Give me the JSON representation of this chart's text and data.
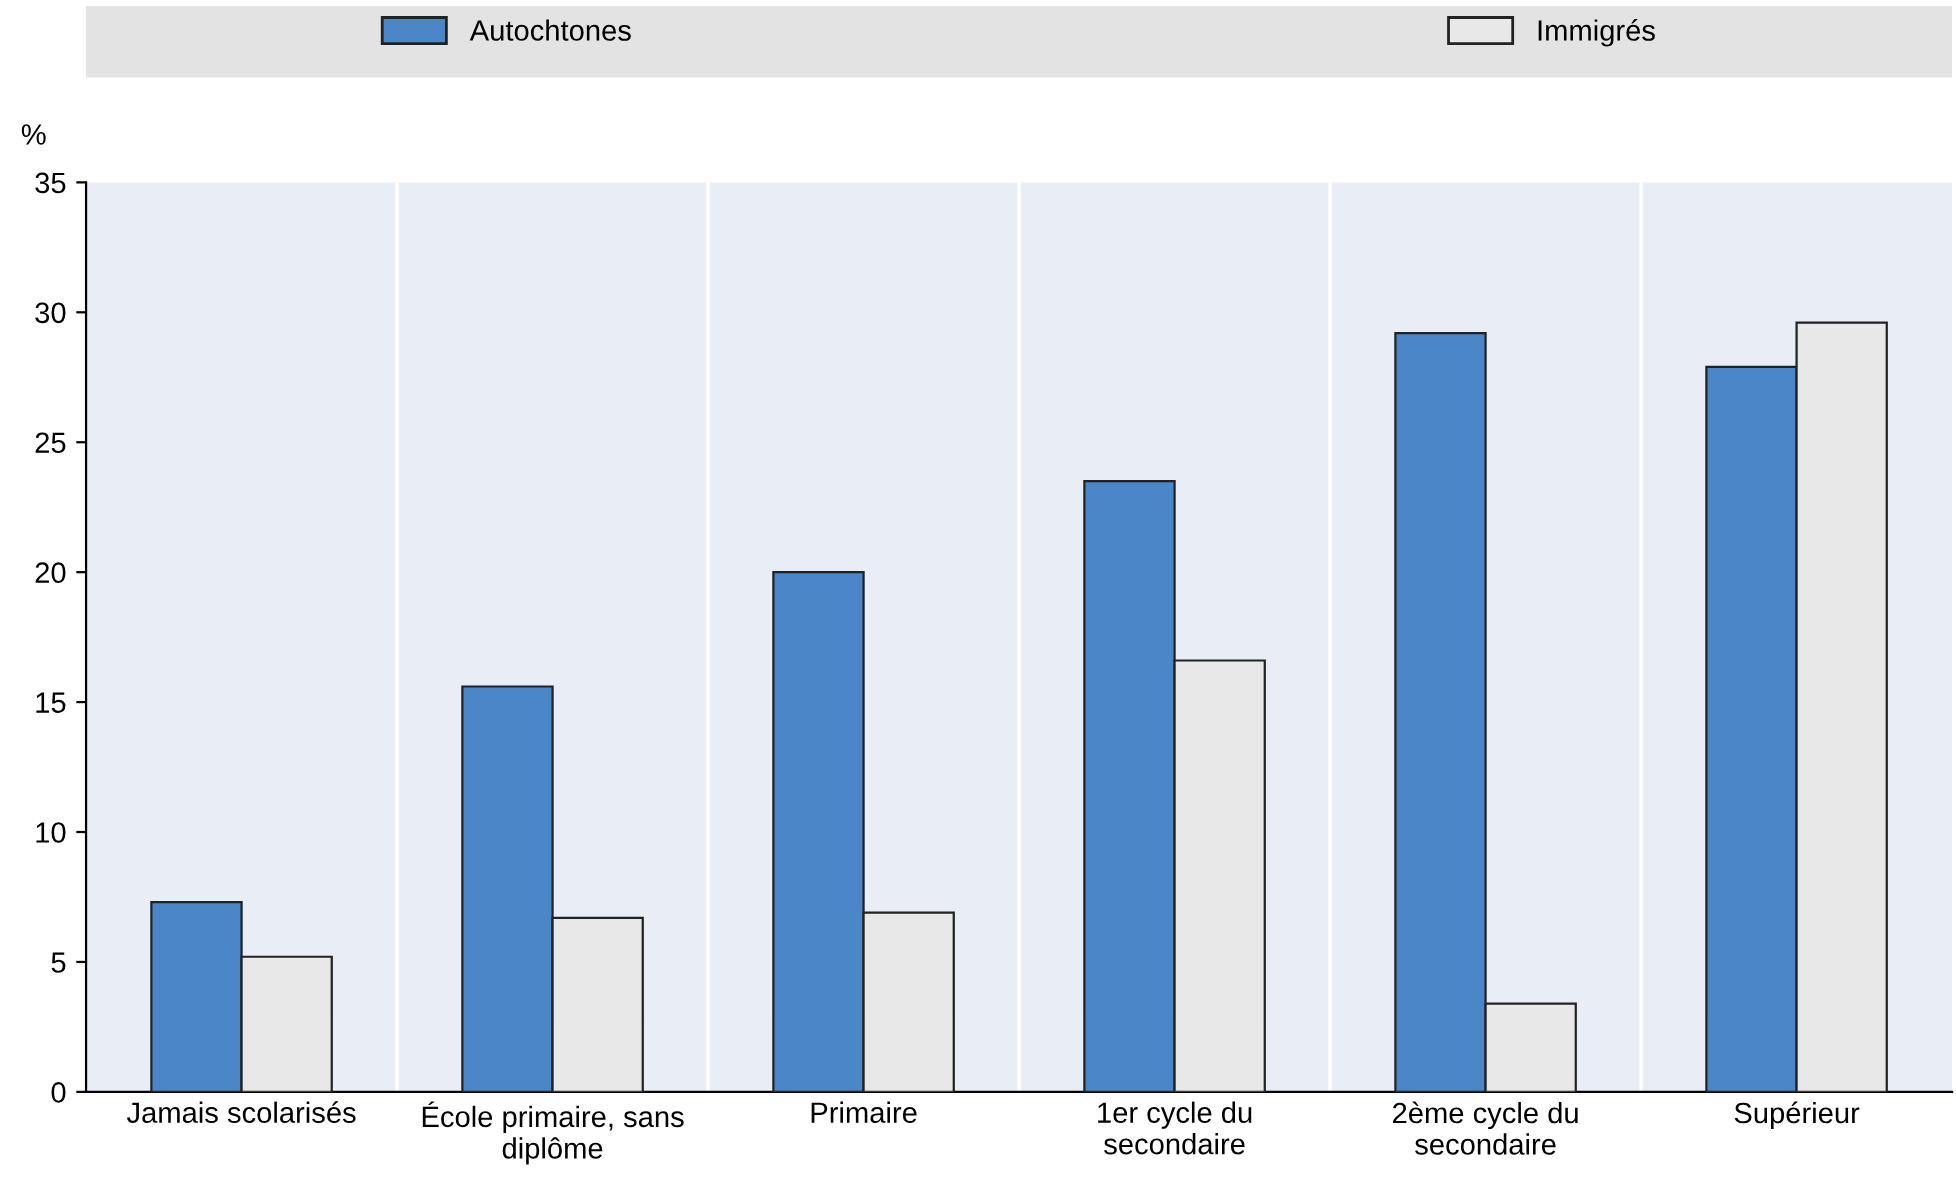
{
  "chart_data": {
    "type": "bar",
    "ylabel": "%",
    "categories": [
      "Jamais scolarisés",
      "École primaire, sans\ndiplôme",
      "Primaire",
      "1er cycle du\nsecondaire",
      "2ème cycle du\nsecondaire",
      "Supérieur"
    ],
    "series": [
      {
        "name": "Autochtones",
        "color": "#4a86c8",
        "values": [
          7.3,
          15.6,
          20.0,
          23.5,
          29.2,
          27.9
        ]
      },
      {
        "name": "Immigrés",
        "color": "#e8e8e8",
        "values": [
          5.2,
          6.7,
          6.9,
          16.6,
          3.4,
          29.6
        ]
      }
    ],
    "ylim": [
      0,
      35
    ],
    "yticks": [
      0,
      5,
      10,
      15,
      20,
      25,
      30,
      35
    ],
    "grid": "x",
    "legend": "top"
  }
}
